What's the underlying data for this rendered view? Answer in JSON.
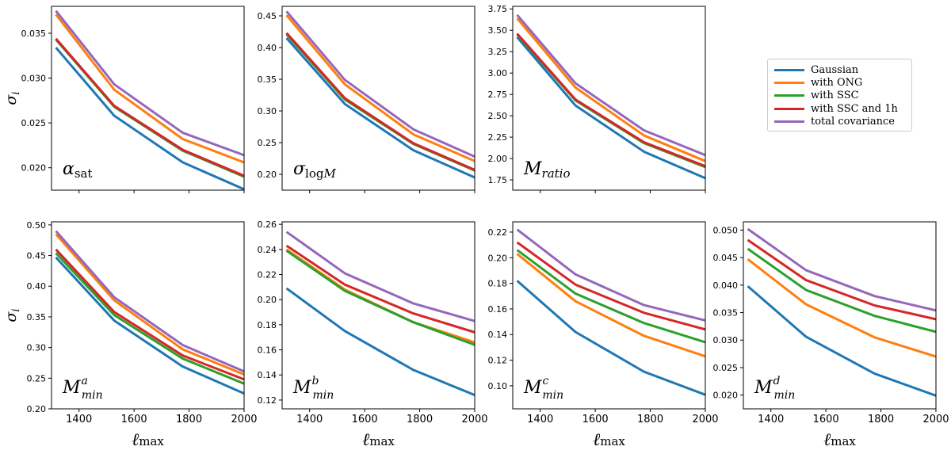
{
  "legend": {
    "items": [
      {
        "name": "Gaussian",
        "color": "#1f77b4"
      },
      {
        "name": "with ONG",
        "color": "#ff7f0e"
      },
      {
        "name": "with SSC",
        "color": "#2ca02c"
      },
      {
        "name": "with SSC and 1h",
        "color": "#d62728"
      },
      {
        "name": "total covariance",
        "color": "#9467bd"
      }
    ]
  },
  "y_axis_label": "σi",
  "x_axis_label": "ℓmax",
  "chart_data": [
    {
      "type": "line",
      "panel_label": {
        "base": "α",
        "sub": "sat",
        "sup": ""
      },
      "x": [
        1316,
        1528,
        1777,
        2000
      ],
      "xticks": [
        1400,
        1600,
        1800,
        2000
      ],
      "xlim": [
        1300,
        2000
      ],
      "ylim": [
        0.0175,
        0.038
      ],
      "yticks": [
        "0.020",
        "0.025",
        "0.030",
        "0.035"
      ],
      "show_xticklabels": false,
      "show_ylabel": true,
      "series": [
        {
          "name": "Gaussian",
          "values": [
            0.0334,
            0.0258,
            0.0206,
            0.0176
          ]
        },
        {
          "name": "with ONG",
          "values": [
            0.0371,
            0.0287,
            0.0232,
            0.0206
          ]
        },
        {
          "name": "with SSC",
          "values": [
            0.0343,
            0.0268,
            0.0219,
            0.019
          ]
        },
        {
          "name": "with SSC and 1h",
          "values": [
            0.0344,
            0.0269,
            0.022,
            0.0191
          ]
        },
        {
          "name": "total covariance",
          "values": [
            0.0375,
            0.0293,
            0.0239,
            0.0214
          ]
        }
      ]
    },
    {
      "type": "line",
      "panel_label": {
        "base": "σ",
        "sub": "logM",
        "sup": ""
      },
      "x": [
        1316,
        1528,
        1777,
        2000
      ],
      "xticks": [
        1400,
        1600,
        1800,
        2000
      ],
      "xlim": [
        1300,
        2000
      ],
      "ylim": [
        0.175,
        0.465
      ],
      "yticks": [
        "0.20",
        "0.25",
        "0.30",
        "0.35",
        "0.40",
        "0.45"
      ],
      "show_xticklabels": false,
      "show_ylabel": false,
      "series": [
        {
          "name": "Gaussian",
          "values": [
            0.415,
            0.311,
            0.238,
            0.195
          ]
        },
        {
          "name": "with ONG",
          "values": [
            0.451,
            0.342,
            0.263,
            0.221
          ]
        },
        {
          "name": "with SSC",
          "values": [
            0.421,
            0.318,
            0.248,
            0.206
          ]
        },
        {
          "name": "with SSC and 1h",
          "values": [
            0.423,
            0.32,
            0.249,
            0.207
          ]
        },
        {
          "name": "total covariance",
          "values": [
            0.457,
            0.349,
            0.271,
            0.228
          ]
        }
      ]
    },
    {
      "type": "line",
      "panel_label": {
        "base": "M",
        "sub": "ratio",
        "sup": ""
      },
      "x": [
        1316,
        1528,
        1777,
        2000
      ],
      "xticks": [
        1400,
        1600,
        1800,
        2000
      ],
      "xlim": [
        1300,
        2000
      ],
      "ylim": [
        1.63,
        3.78
      ],
      "yticks": [
        "1.75",
        "2.00",
        "2.25",
        "2.50",
        "2.75",
        "3.00",
        "3.25",
        "3.50",
        "3.75"
      ],
      "show_xticklabels": false,
      "show_ylabel": false,
      "series": [
        {
          "name": "Gaussian",
          "values": [
            3.42,
            2.62,
            2.08,
            1.77
          ]
        },
        {
          "name": "with ONG",
          "values": [
            3.64,
            2.83,
            2.27,
            1.97
          ]
        },
        {
          "name": "with SSC",
          "values": [
            3.45,
            2.68,
            2.18,
            1.9
          ]
        },
        {
          "name": "with SSC and 1h",
          "values": [
            3.46,
            2.69,
            2.19,
            1.91
          ]
        },
        {
          "name": "total covariance",
          "values": [
            3.68,
            2.88,
            2.33,
            2.04
          ]
        }
      ]
    },
    {
      "type": "line",
      "panel_label": {
        "base": "M",
        "sub": "min",
        "sup": "a"
      },
      "x": [
        1316,
        1528,
        1777,
        2000
      ],
      "xticks": [
        1400,
        1600,
        1800,
        2000
      ],
      "xlim": [
        1300,
        2000
      ],
      "ylim": [
        0.2,
        0.505
      ],
      "yticks": [
        "0.20",
        "0.25",
        "0.30",
        "0.35",
        "0.40",
        "0.45",
        "0.50"
      ],
      "show_xticklabels": true,
      "show_ylabel": true,
      "series": [
        {
          "name": "Gaussian",
          "values": [
            0.447,
            0.344,
            0.269,
            0.225
          ]
        },
        {
          "name": "with ONG",
          "values": [
            0.485,
            0.377,
            0.297,
            0.256
          ]
        },
        {
          "name": "with SSC",
          "values": [
            0.454,
            0.353,
            0.282,
            0.241
          ]
        },
        {
          "name": "with SSC and 1h",
          "values": [
            0.46,
            0.358,
            0.287,
            0.248
          ]
        },
        {
          "name": "total covariance",
          "values": [
            0.49,
            0.382,
            0.304,
            0.261
          ]
        }
      ]
    },
    {
      "type": "line",
      "panel_label": {
        "base": "M",
        "sub": "min",
        "sup": "b"
      },
      "x": [
        1316,
        1528,
        1777,
        2000
      ],
      "xticks": [
        1400,
        1600,
        1800,
        2000
      ],
      "xlim": [
        1300,
        2000
      ],
      "ylim": [
        0.113,
        0.262
      ],
      "yticks": [
        "0.12",
        "0.14",
        "0.16",
        "0.18",
        "0.20",
        "0.22",
        "0.24",
        "0.26"
      ],
      "show_xticklabels": true,
      "show_ylabel": false,
      "series": [
        {
          "name": "Gaussian",
          "values": [
            0.209,
            0.175,
            0.144,
            0.124
          ]
        },
        {
          "name": "with ONG",
          "values": [
            0.24,
            0.208,
            0.182,
            0.166
          ]
        },
        {
          "name": "with SSC",
          "values": [
            0.239,
            0.207,
            0.182,
            0.164
          ]
        },
        {
          "name": "with SSC and 1h",
          "values": [
            0.243,
            0.212,
            0.189,
            0.174
          ]
        },
        {
          "name": "total covariance",
          "values": [
            0.254,
            0.221,
            0.197,
            0.183
          ]
        }
      ]
    },
    {
      "type": "line",
      "panel_label": {
        "base": "M",
        "sub": "min",
        "sup": "c"
      },
      "x": [
        1316,
        1528,
        1777,
        2000
      ],
      "xticks": [
        1400,
        1600,
        1800,
        2000
      ],
      "xlim": [
        1300,
        2000
      ],
      "ylim": [
        0.082,
        0.228
      ],
      "yticks": [
        "0.10",
        "0.12",
        "0.14",
        "0.16",
        "0.18",
        "0.20",
        "0.22"
      ],
      "show_xticklabels": true,
      "show_ylabel": false,
      "series": [
        {
          "name": "Gaussian",
          "values": [
            0.182,
            0.142,
            0.111,
            0.093
          ]
        },
        {
          "name": "with ONG",
          "values": [
            0.203,
            0.166,
            0.139,
            0.123
          ]
        },
        {
          "name": "with SSC",
          "values": [
            0.206,
            0.172,
            0.149,
            0.134
          ]
        },
        {
          "name": "with SSC and 1h",
          "values": [
            0.212,
            0.179,
            0.157,
            0.144
          ]
        },
        {
          "name": "total covariance",
          "values": [
            0.222,
            0.187,
            0.163,
            0.151
          ]
        }
      ]
    },
    {
      "type": "line",
      "panel_label": {
        "base": "M",
        "sub": "min",
        "sup": "d"
      },
      "x": [
        1316,
        1528,
        1777,
        2000
      ],
      "xticks": [
        1400,
        1600,
        1800,
        2000
      ],
      "xlim": [
        1300,
        2000
      ],
      "ylim": [
        0.0175,
        0.0515
      ],
      "yticks": [
        "0.020",
        "0.025",
        "0.030",
        "0.035",
        "0.040",
        "0.045",
        "0.050"
      ],
      "show_xticklabels": true,
      "show_ylabel": false,
      "series": [
        {
          "name": "Gaussian",
          "values": [
            0.0398,
            0.0306,
            0.0239,
            0.0199
          ]
        },
        {
          "name": "with ONG",
          "values": [
            0.0447,
            0.0365,
            0.0305,
            0.027
          ]
        },
        {
          "name": "with SSC",
          "values": [
            0.0466,
            0.0391,
            0.0344,
            0.0315
          ]
        },
        {
          "name": "with SSC and 1h",
          "values": [
            0.0482,
            0.0409,
            0.0363,
            0.0338
          ]
        },
        {
          "name": "total covariance",
          "values": [
            0.0502,
            0.0427,
            0.038,
            0.0354
          ]
        }
      ]
    }
  ]
}
